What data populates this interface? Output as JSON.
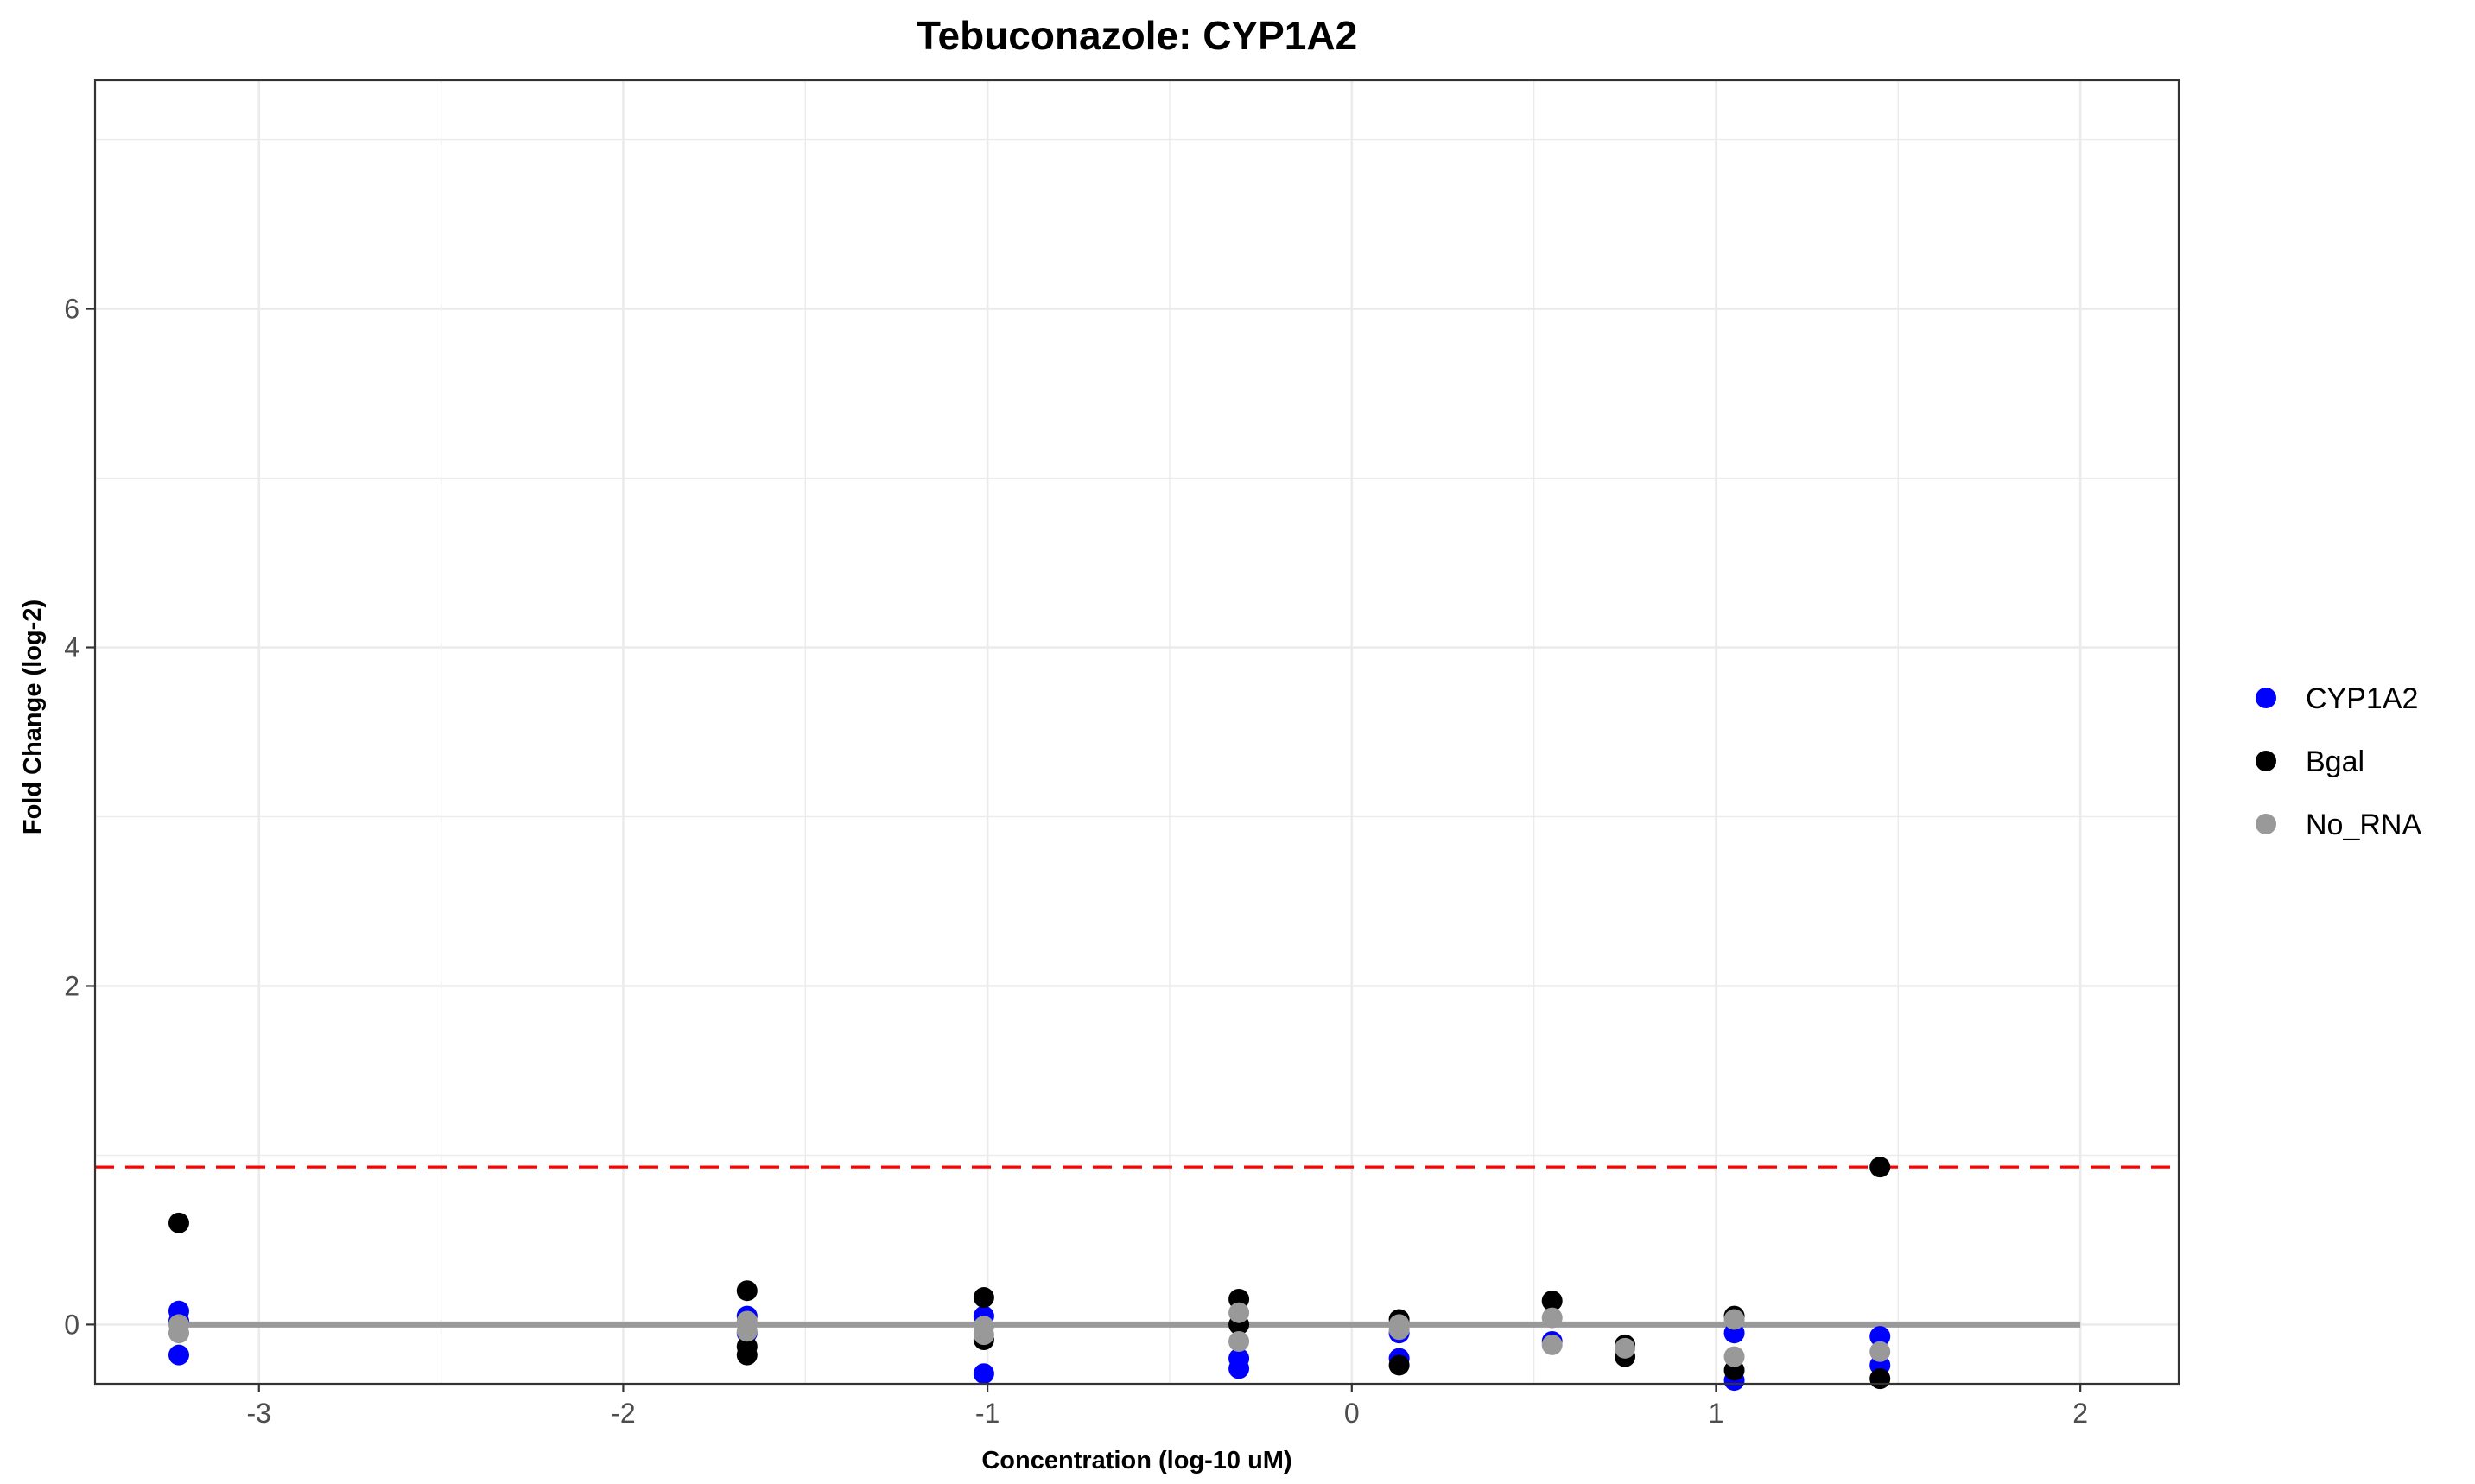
{
  "chart_data": {
    "type": "scatter",
    "title": "Tebuconazole: CYP1A2",
    "xlabel": "Concentration (log-10 uM)",
    "ylabel": "Fold Change (log-2)",
    "xlim": [
      -3.45,
      2.27
    ],
    "ylim": [
      -0.35,
      7.35
    ],
    "x_ticks": [
      -3,
      -2,
      -1,
      0,
      1,
      2
    ],
    "x_tick_labels": [
      "-3",
      "-2",
      "-1",
      "0",
      "1",
      "2"
    ],
    "y_ticks": [
      0,
      2,
      4,
      6
    ],
    "y_tick_labels": [
      "0",
      "2",
      "4",
      "6"
    ],
    "grid": true,
    "legend_position": "right",
    "threshold": {
      "y": 0.93,
      "color": "#ff0000",
      "style": "dashed"
    },
    "baseline": {
      "y": 0,
      "x_from": -3.22,
      "x_to": 2.0,
      "color": "#999999"
    },
    "series": [
      {
        "name": "CYP1A2",
        "color": "#0000ff",
        "points": [
          {
            "x": -3.22,
            "y": 0.08
          },
          {
            "x": -3.22,
            "y": -0.18
          },
          {
            "x": -3.22,
            "y": 0.02
          },
          {
            "x": -1.66,
            "y": 0.05
          },
          {
            "x": -1.66,
            "y": -0.05
          },
          {
            "x": -1.01,
            "y": 0.05
          },
          {
            "x": -1.01,
            "y": -0.29
          },
          {
            "x": -0.31,
            "y": -0.2
          },
          {
            "x": -0.31,
            "y": -0.26
          },
          {
            "x": 0.13,
            "y": -0.2
          },
          {
            "x": 0.13,
            "y": -0.05
          },
          {
            "x": 0.55,
            "y": -0.1
          },
          {
            "x": 1.05,
            "y": -0.05
          },
          {
            "x": 1.05,
            "y": -0.33
          },
          {
            "x": 1.45,
            "y": -0.07
          },
          {
            "x": 1.45,
            "y": -0.24
          }
        ]
      },
      {
        "name": "Bgal",
        "color": "#000000",
        "points": [
          {
            "x": -3.22,
            "y": 0.6
          },
          {
            "x": -1.66,
            "y": 0.2
          },
          {
            "x": -1.66,
            "y": -0.18
          },
          {
            "x": -1.66,
            "y": -0.13
          },
          {
            "x": -1.01,
            "y": 0.16
          },
          {
            "x": -1.01,
            "y": -0.09
          },
          {
            "x": -0.31,
            "y": 0.15
          },
          {
            "x": -0.31,
            "y": 0.0
          },
          {
            "x": 0.13,
            "y": 0.03
          },
          {
            "x": 0.13,
            "y": -0.24
          },
          {
            "x": 0.55,
            "y": 0.14
          },
          {
            "x": 0.75,
            "y": -0.12
          },
          {
            "x": 0.75,
            "y": -0.19
          },
          {
            "x": 1.05,
            "y": -0.27
          },
          {
            "x": 1.05,
            "y": 0.05
          },
          {
            "x": 1.45,
            "y": 0.93
          },
          {
            "x": 1.45,
            "y": -0.32
          }
        ]
      },
      {
        "name": "No_RNA",
        "color": "#999999",
        "points": [
          {
            "x": -3.22,
            "y": 0.0
          },
          {
            "x": -3.22,
            "y": -0.05
          },
          {
            "x": -1.66,
            "y": 0.02
          },
          {
            "x": -1.66,
            "y": -0.04
          },
          {
            "x": -1.01,
            "y": -0.01
          },
          {
            "x": -1.01,
            "y": -0.06
          },
          {
            "x": -0.31,
            "y": 0.07
          },
          {
            "x": -0.31,
            "y": -0.1
          },
          {
            "x": 0.13,
            "y": 0.0
          },
          {
            "x": 0.13,
            "y": -0.03
          },
          {
            "x": 0.55,
            "y": 0.04
          },
          {
            "x": 0.55,
            "y": -0.12
          },
          {
            "x": 0.75,
            "y": -0.14
          },
          {
            "x": 1.05,
            "y": 0.03
          },
          {
            "x": 1.05,
            "y": -0.19
          },
          {
            "x": 1.45,
            "y": -0.16
          }
        ]
      }
    ]
  }
}
